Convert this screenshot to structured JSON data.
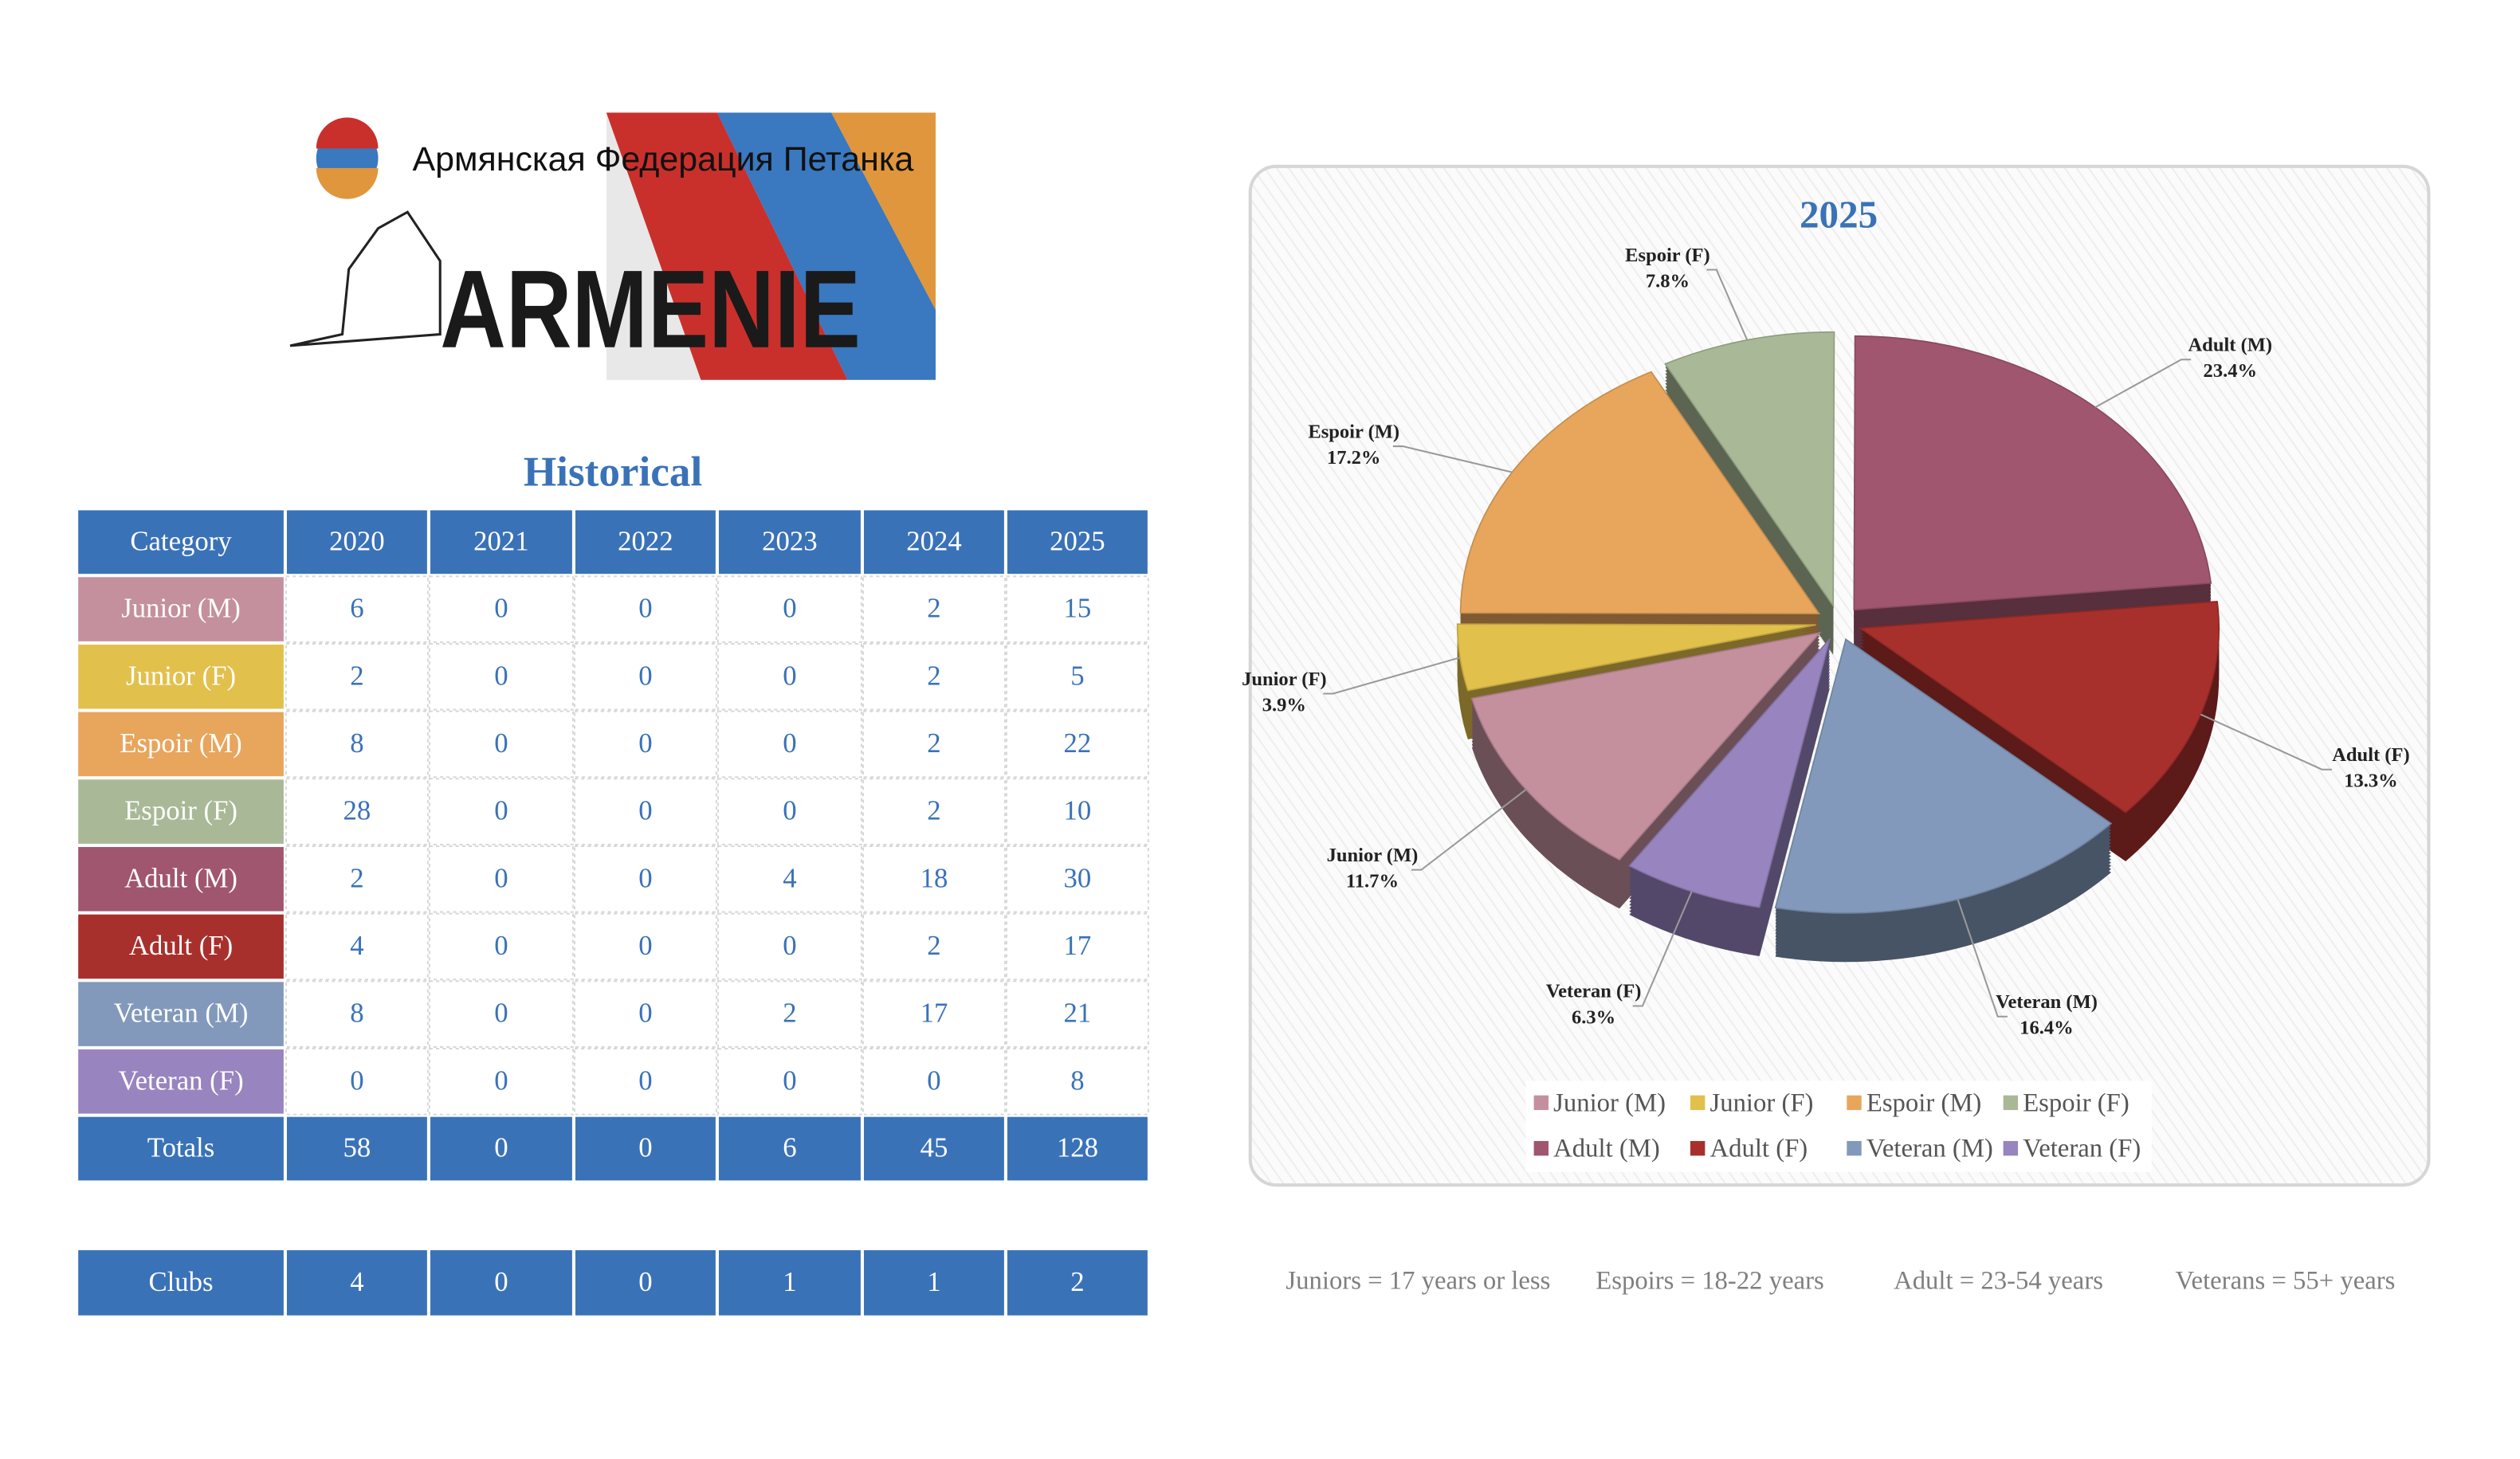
{
  "logo": {
    "subtitle": "Армянская Федерация Петанка",
    "name": "ARMENIE"
  },
  "table": {
    "title": "Historical",
    "header": [
      "Category",
      "2020",
      "2021",
      "2022",
      "2023",
      "2024",
      "2025"
    ],
    "rows": [
      [
        "Junior (M)",
        6,
        0,
        0,
        0,
        2,
        15
      ],
      [
        "Junior (F)",
        2,
        0,
        0,
        0,
        2,
        5
      ],
      [
        "Espoir (M)",
        8,
        0,
        0,
        0,
        2,
        22
      ],
      [
        "Espoir (F)",
        28,
        0,
        0,
        0,
        2,
        10
      ],
      [
        "Adult (M)",
        2,
        0,
        0,
        4,
        18,
        30
      ],
      [
        "Adult (F)",
        4,
        0,
        0,
        0,
        2,
        17
      ],
      [
        "Veteran (M)",
        8,
        0,
        0,
        2,
        17,
        21
      ],
      [
        "Veteran (F)",
        0,
        0,
        0,
        0,
        0,
        8
      ]
    ],
    "totals": [
      "Totals",
      58,
      0,
      0,
      6,
      45,
      128
    ],
    "clubs": [
      "Clubs",
      4,
      0,
      0,
      1,
      1,
      2
    ]
  },
  "chart_data": {
    "type": "pie",
    "title": "2025",
    "categories": [
      "Junior (M)",
      "Junior (F)",
      "Espoir (M)",
      "Espoir (F)",
      "Adult (M)",
      "Adult (F)",
      "Veteran (M)",
      "Veteran (F)"
    ],
    "values": [
      11.7,
      3.9,
      17.2,
      7.8,
      23.4,
      13.3,
      16.4,
      6.3
    ],
    "value_labels": [
      "11.7%",
      "3.9%",
      "17.2%",
      "7.8%",
      "23.4%",
      "13.3%",
      "16.4%",
      "6.3%"
    ],
    "colors": [
      "#c4909e",
      "#e2c04c",
      "#e8a55c",
      "#a9b896",
      "#a0566e",
      "#a8302c",
      "#8299bb",
      "#9884bf"
    ],
    "legend": "bottom"
  },
  "notes": [
    "Juniors = 17 years or less",
    "Espoirs = 18-22 years",
    "Adult = 23-54 years",
    "Veterans = 55+ years"
  ]
}
